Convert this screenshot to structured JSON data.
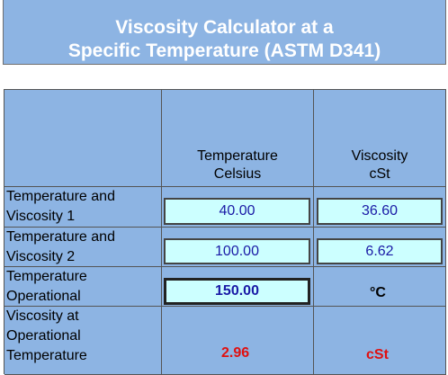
{
  "title": {
    "line1": "Viscosity Calculator at a",
    "line2": "Specific Temperature (ASTM D341)"
  },
  "headers": {
    "temperature": [
      "Temperature",
      "Celsius"
    ],
    "viscosity": [
      "Viscosity",
      "cSt"
    ]
  },
  "rows": {
    "r1": {
      "label": [
        "Temperature and",
        "Viscosity 1"
      ],
      "temperature": "40.00",
      "viscosity": "36.60"
    },
    "r2": {
      "label": [
        "Temperature and",
        "Viscosity 2"
      ],
      "temperature": "100.00",
      "viscosity": "6.62"
    },
    "r3": {
      "label": [
        "Temperature",
        "Operational"
      ],
      "temperature": "150.00",
      "unit": "°C"
    },
    "r4": {
      "label": [
        "Viscosity at",
        "Operational",
        "Temperature"
      ],
      "result": "2.96",
      "unit": "cSt"
    }
  },
  "colors": {
    "panel": "#8db4e3",
    "input_bg": "#ccffff",
    "input_text": "#1a1aa6",
    "result_text": "#e01010",
    "title_text": "#ffffff"
  }
}
